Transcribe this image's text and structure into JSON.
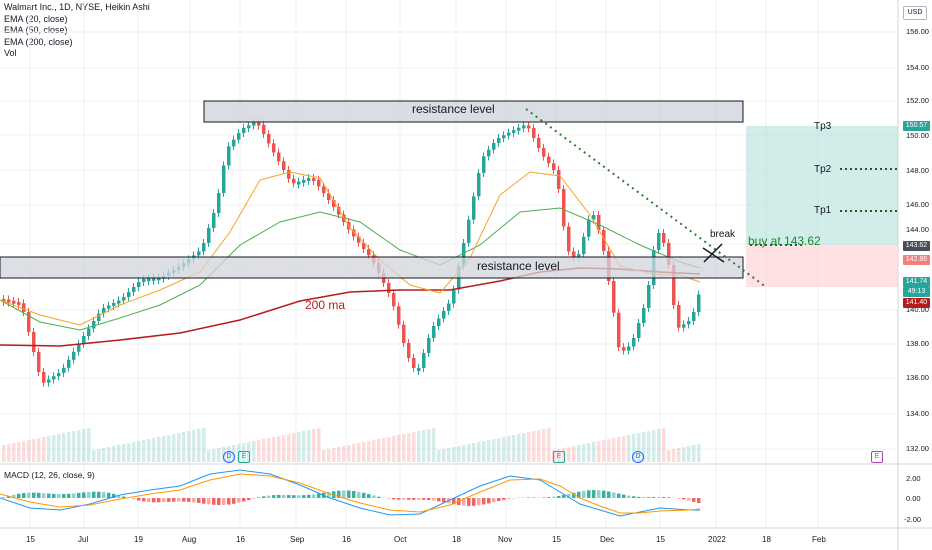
{
  "legend": {
    "title": "Walmart Inc., 1D, NYSE, Heikin Ashi",
    "ema20": "EMA (20, close)",
    "ema50": "EMA (50, close)",
    "ema200": "EMA (200, close)",
    "vol": "Vol"
  },
  "currency": "USD",
  "macd_legend": "MACD (12, 26, close, 9)",
  "price_axis": [
    "156.00",
    "154.00",
    "152.00",
    "150.00",
    "148.00",
    "146.00",
    "144.00",
    "140.00",
    "138.00",
    "136.00",
    "134.00",
    "132.00"
  ],
  "macd_axis": [
    "2.00",
    "0.00",
    "-2.00"
  ],
  "time_axis": [
    "15",
    "Jul",
    "19",
    "Aug",
    "16",
    "Sep",
    "16",
    "Oct",
    "18",
    "Nov",
    "15",
    "Dec",
    "15",
    "2022",
    "18",
    "Feb"
  ],
  "annotations": {
    "resistance_top": "resistance level",
    "resistance_mid": "resistance level",
    "ma200": "200 ma",
    "break": "break",
    "buy": "buy at 143.62",
    "tp1": "Tp1",
    "tp2": "Tp2",
    "tp3": "Tp3"
  },
  "price_tags": {
    "tp3": "150.57",
    "entry": "143.62",
    "ema20": "142.86",
    "last": "141.74",
    "countdown": "49:13",
    "ema200": "141.40"
  },
  "events": [
    "D",
    "E",
    "E",
    "D",
    "E"
  ],
  "colors": {
    "up": "#26a69a",
    "down": "#ef5350",
    "ema20": "#f5a623",
    "ema50": "#4caf50",
    "ema200": "#b71c1c",
    "target_zone": "#b2dfdb",
    "stop_zone": "#ffcdd2"
  }
}
